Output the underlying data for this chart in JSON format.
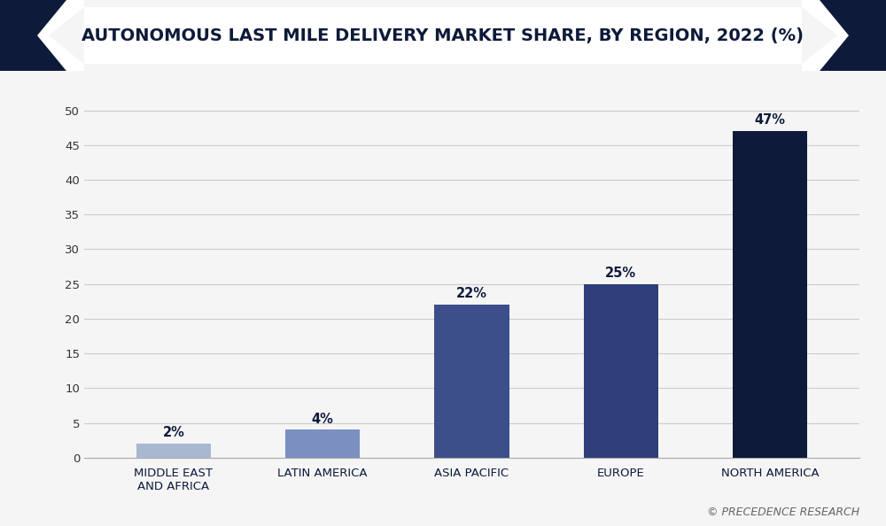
{
  "title": "AUTONOMOUS LAST MILE DELIVERY MARKET SHARE, BY REGION, 2022 (%)",
  "categories": [
    "MIDDLE EAST\nAND AFRICA",
    "LATIN AMERICA",
    "ASIA PACIFIC",
    "EUROPE",
    "NORTH AMERICA"
  ],
  "values": [
    2,
    4,
    22,
    25,
    47
  ],
  "labels": [
    "2%",
    "4%",
    "22%",
    "25%",
    "47%"
  ],
  "bar_colors": [
    "#a8b8d0",
    "#7b8fc0",
    "#3d4f8a",
    "#2e3f7a",
    "#0d1a3a"
  ],
  "background_color": "#f5f5f5",
  "plot_bg_color": "#f5f5f5",
  "title_color": "#0d1a3a",
  "title_fontsize": 14,
  "label_fontsize": 10.5,
  "tick_fontsize": 9.5,
  "yticks": [
    0,
    5,
    10,
    15,
    20,
    25,
    30,
    35,
    40,
    45,
    50
  ],
  "ylim": [
    0,
    53
  ],
  "grid_color": "#cccccc",
  "watermark": "© PRECEDENCE RESEARCH",
  "watermark_color": "#666666",
  "header_bg": "#0d1a3a",
  "header_white_bg": "#ffffff",
  "arrow_color": "#2d3f6e"
}
